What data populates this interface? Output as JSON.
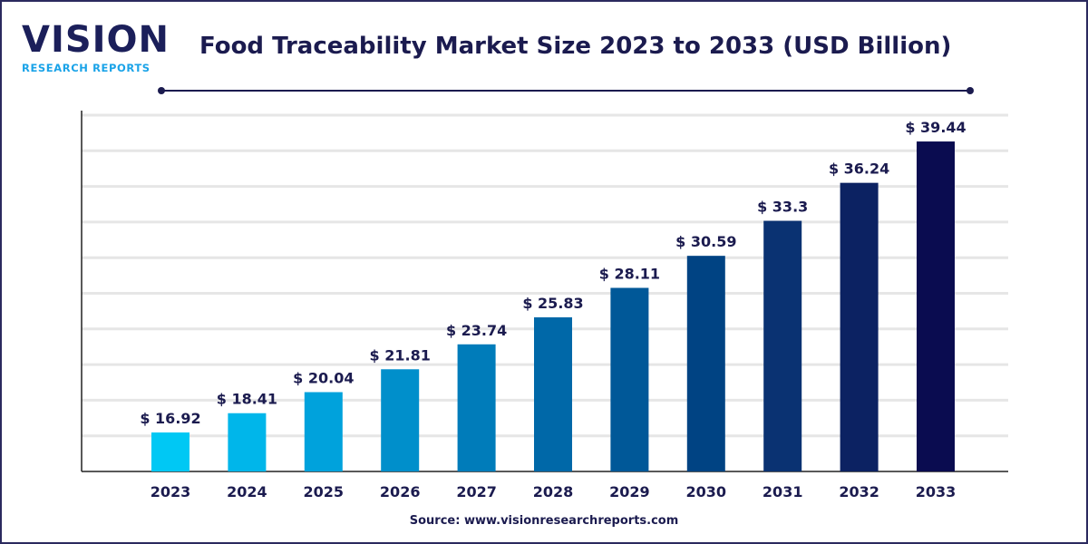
{
  "logo": {
    "word": "VISION",
    "sub": "RESEARCH REPORTS"
  },
  "source": "Source: www.visionresearchreports.com",
  "chart_data": {
    "type": "bar",
    "title": "Food Traceability Market Size 2023 to 2033 (USD Billion)",
    "categories": [
      "2023",
      "2024",
      "2025",
      "2026",
      "2027",
      "2028",
      "2029",
      "2030",
      "2031",
      "2032",
      "2033"
    ],
    "values": [
      16.92,
      18.41,
      20.04,
      21.81,
      23.74,
      25.83,
      28.11,
      30.59,
      33.3,
      36.24,
      39.44
    ],
    "labels": [
      "$ 16.92",
      "$ 18.41",
      "$ 20.04",
      "$ 21.81",
      "$ 23.74",
      "$ 25.83",
      "$ 28.11",
      "$ 30.59",
      "$ 33.3",
      "$ 36.24",
      "$ 39.44"
    ],
    "colors": [
      "#00c8f4",
      "#00b6ea",
      "#00a2dc",
      "#008fcb",
      "#007cba",
      "#0068a8",
      "#005898",
      "#004383",
      "#0a3272",
      "#0c2262",
      "#0a0c50"
    ],
    "xlabel": "",
    "ylabel": "",
    "grid": true,
    "legend": "none"
  }
}
